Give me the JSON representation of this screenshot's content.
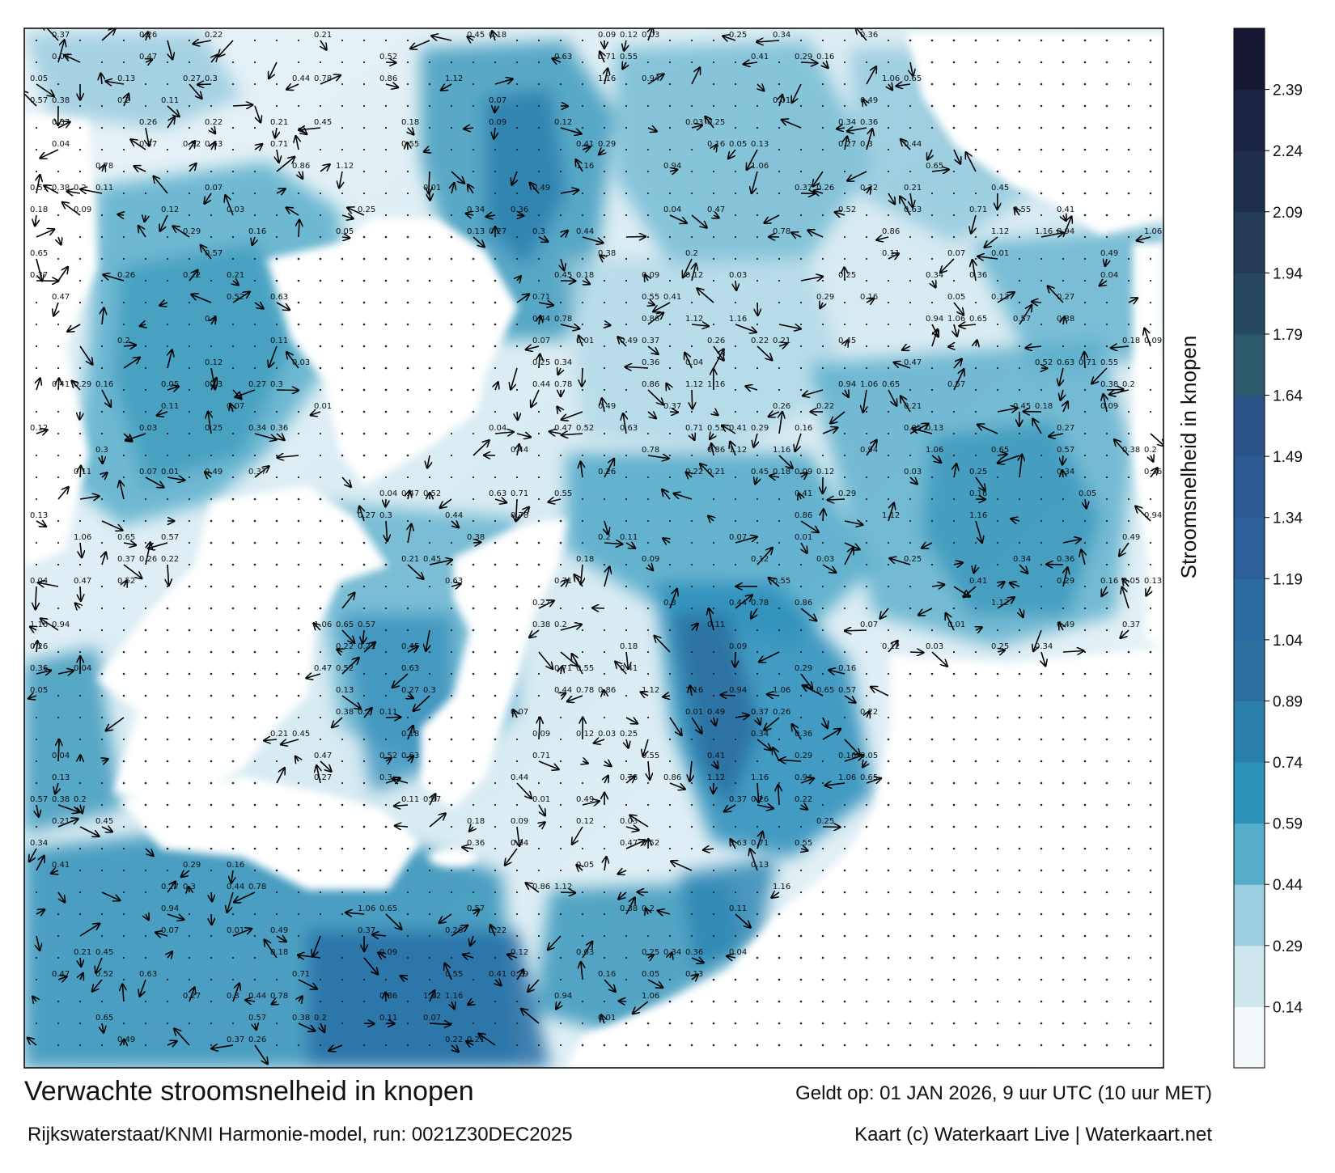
{
  "title": "Verwachte stroomsnelheid in knopen",
  "valid_time": "Geldt op: 01 JAN 2026, 9 uur UTC (10 uur MET)",
  "source": "Rijkswaterstaat/KNMI Harmonie-model, run: 0021Z30DEC2025",
  "copyright": "Kaart (c) Waterkaart Live | Waterkaart.net",
  "colorbar": {
    "label": "Stroomsnelheid in knopen",
    "ticks": [
      "0.14",
      "0.29",
      "0.44",
      "0.59",
      "0.74",
      "0.89",
      "1.04",
      "1.19",
      "1.34",
      "1.49",
      "1.64",
      "1.79",
      "1.94",
      "2.09",
      "2.24",
      "2.39"
    ],
    "colors": [
      "#f4f9fb",
      "#cfe6ef",
      "#9ccde0",
      "#56aecb",
      "#2d92b8",
      "#2a80ab",
      "#2b709f",
      "#2c6aa2",
      "#2d5f9d",
      "#2d5a93",
      "#2c5388",
      "#2c5b6c",
      "#27495f",
      "#253c58",
      "#1f2f4d",
      "#1a2344",
      "#171833"
    ]
  },
  "colors": {
    "land": "#ffffff",
    "water_light": "#e6f2f7",
    "water_mid": "#5fb0cc",
    "water_dark": "#2a6fa0",
    "frame": "#000000"
  },
  "sample_labels": [
    "0.37",
    "0.26",
    "0.22",
    "0.21",
    "0.45",
    "0.18",
    "0.09",
    "0.12",
    "0.03",
    "0.25",
    "0.34",
    "0.36",
    "0.04",
    "0.47",
    "0.52",
    "0.63",
    "0.71",
    "0.55",
    "0.41",
    "0.29",
    "0.16",
    "0.05",
    "0.13",
    "0.27",
    "0.3",
    "0.44",
    "0.78",
    "0.86",
    "1.12",
    "1.16",
    "0.94",
    "1.06",
    "0.65",
    "0.57",
    "0.38",
    "0.2",
    "0.11",
    "0.07",
    "0.01",
    "0.49"
  ]
}
